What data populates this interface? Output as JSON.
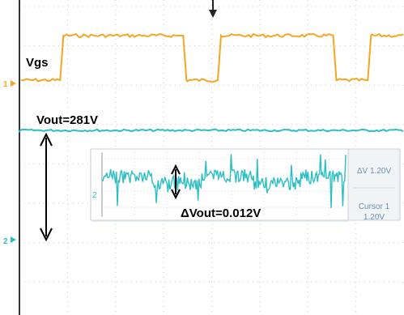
{
  "labels": {
    "vgs": "Vgs",
    "vout": "Vout=281V",
    "delta_vout": "ΔVout=0.012V",
    "ch1_marker": "1",
    "ch2_marker": "2",
    "inset_ch2_marker": "2"
  },
  "inset": {
    "delta_readout": "ΔV 1.20V",
    "cursor_title": "Cursor 1",
    "cursor_value": "1.20V"
  },
  "colors": {
    "ch1": "#f5a623",
    "ch2": "#2bbfc3",
    "grid": "#c8c8c8",
    "inset_bg": "#ffffff",
    "inset_side": "#eef1f4",
    "inset_text": "#6a8fb0",
    "marker_ch1": "#f5a623",
    "marker_ch2": "#2bbfc3"
  },
  "chart_data": {
    "type": "line",
    "series": [
      {
        "name": "Vgs",
        "description_of_shape": "square wave",
        "edges": [
          {
            "t": 0.11,
            "level": "high"
          },
          {
            "t": 0.43,
            "level": "low"
          },
          {
            "t": 0.52,
            "level": "high"
          },
          {
            "t": 0.82,
            "level": "low"
          },
          {
            "t": 0.91,
            "level": "high"
          }
        ],
        "initial_level": "low"
      },
      {
        "name": "Vout",
        "level": "flat"
      }
    ],
    "annotations": [
      "Vgs",
      "Vout=281V",
      "ΔVout=0.012V"
    ],
    "inset_readouts": [
      "ΔV 1.20V",
      "Cursor 1",
      "1.20V"
    ],
    "grid": true
  }
}
